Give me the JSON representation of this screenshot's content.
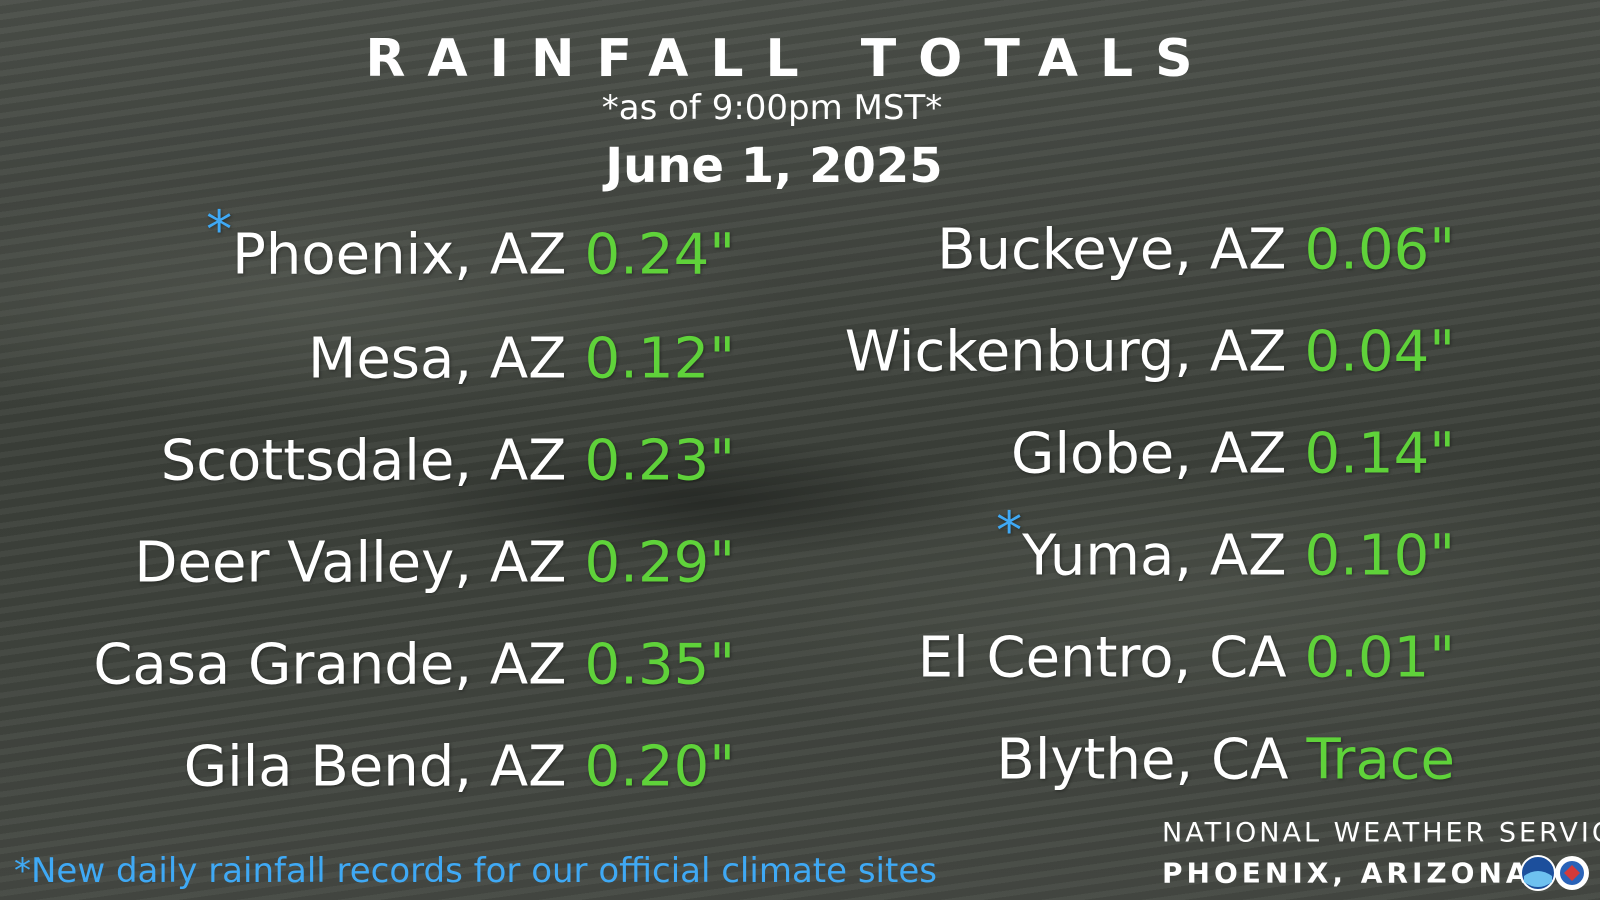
{
  "header": {
    "title": "RAINFALL TOTALS",
    "subtitle": "*as of 9:00pm MST*",
    "date": "June 1, 2025"
  },
  "left_list": [
    {
      "marker": "*",
      "location": "Phoenix, AZ",
      "amount": "0.24\""
    },
    {
      "location": "Mesa, AZ",
      "amount": "0.12\""
    },
    {
      "location": "Scottsdale, AZ",
      "amount": "0.23\""
    },
    {
      "location": "Deer Valley, AZ",
      "amount": "0.29\""
    },
    {
      "location": "Casa Grande, AZ",
      "amount": "0.35\""
    },
    {
      "location": "Gila Bend, AZ",
      "amount": "0.20\""
    }
  ],
  "right_list": [
    {
      "location": "Buckeye, AZ",
      "amount": "0.06\""
    },
    {
      "location": "Wickenburg, AZ",
      "amount": "0.04\""
    },
    {
      "location": "Globe, AZ",
      "amount": "0.14\""
    },
    {
      "marker": "*",
      "location": "Yuma, AZ",
      "amount": "0.10\""
    },
    {
      "location": "El Centro, CA",
      "amount": "0.01\""
    },
    {
      "location": "Blythe, CA",
      "amount": "Trace"
    }
  ],
  "footnote": "*New daily rainfall records for our official climate sites",
  "branding": {
    "line1": "NATIONAL WEATHER SERVICE",
    "line2": "PHOENIX, ARIZONA"
  }
}
